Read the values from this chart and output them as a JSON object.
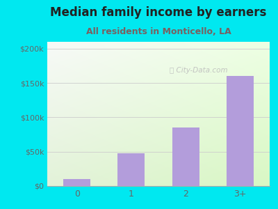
{
  "title": "Median family income by earners",
  "subtitle": "All residents in Monticello, LA",
  "categories": [
    "0",
    "1",
    "2",
    "3+"
  ],
  "values": [
    10000,
    48000,
    85000,
    160000
  ],
  "bar_color": "#b39ddb",
  "title_fontsize": 12,
  "subtitle_fontsize": 9,
  "subtitle_color": "#7a6060",
  "title_color": "#222222",
  "outer_bg": "#00e8f0",
  "ylim": [
    0,
    210000
  ],
  "yticks": [
    0,
    50000,
    100000,
    150000,
    200000
  ],
  "ytick_labels": [
    "$0",
    "$50k",
    "$100k",
    "$150k",
    "$200k"
  ],
  "tick_color": "#666666",
  "watermark": "City-Data.com",
  "xlim_left": -0.55,
  "xlim_right": 3.55
}
